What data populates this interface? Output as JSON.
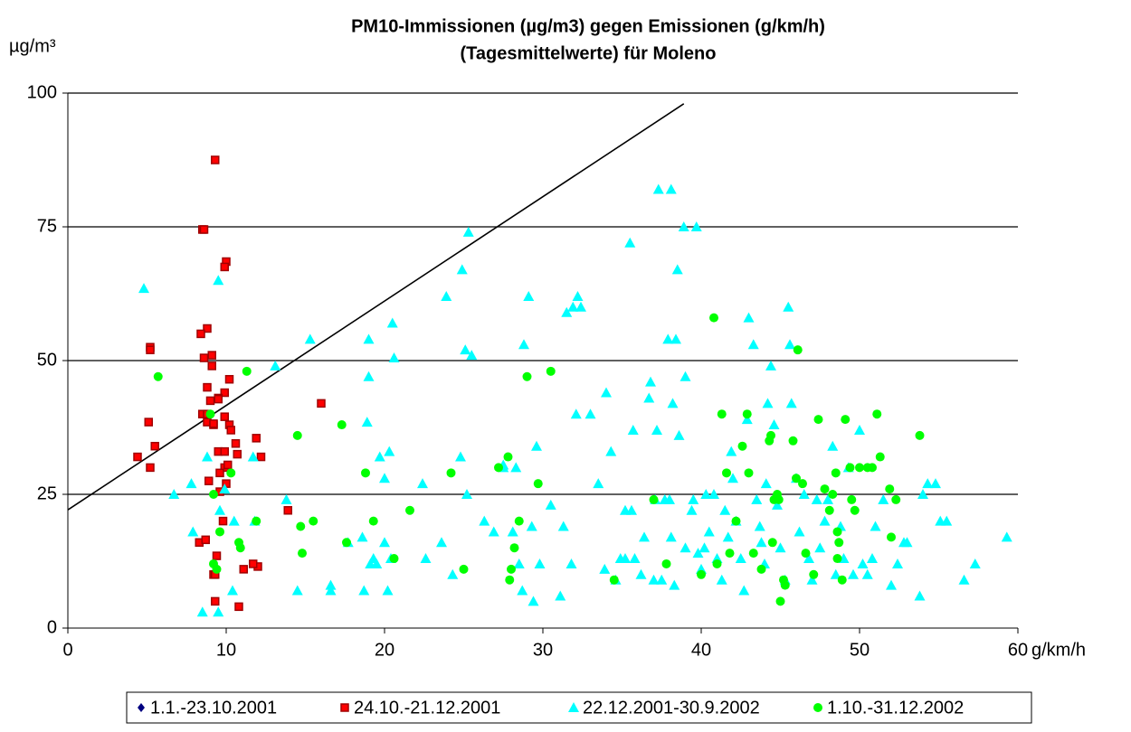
{
  "chart_data": {
    "type": "scatter",
    "title": "PM10-Immissionen (µg/m3) gegen Emissionen (g/km/h)",
    "subtitle": "(Tagesmittelwerte) für Moleno",
    "y_label": "µg/m³",
    "x_label": "g/km/h",
    "xlim": [
      0,
      60
    ],
    "xticks": [
      0,
      10,
      20,
      30,
      40,
      50,
      60
    ],
    "ylim": [
      0,
      100
    ],
    "yticks": [
      0,
      25,
      50,
      75,
      100
    ],
    "grid": true,
    "line": {
      "x": [
        0,
        38.9
      ],
      "values": [
        22.1,
        98
      ],
      "color": "#000000"
    },
    "series": [
      {
        "name": "1.1.-23.10.2001",
        "color": "#000080",
        "marker": "diamond",
        "x": [],
        "values": []
      },
      {
        "name": "24.10.-21.12.2001",
        "color": "#ff0000",
        "marker": "square",
        "x": [
          9.3,
          8.5,
          8.6,
          10,
          9.9,
          8.8,
          8.4,
          5.2,
          5.2,
          9.1,
          8.6,
          9.1,
          10.2,
          9.9,
          9.5,
          9,
          16,
          8.5,
          8.8,
          9.9,
          10.2,
          8.8,
          9.2,
          10.3,
          5.1,
          11.9,
          5.5,
          10.6,
          9.5,
          9.9,
          10.7,
          4.4,
          12.2,
          9.9,
          10.1,
          5.2,
          9.6,
          8.9,
          10,
          9.6,
          13.9,
          9.8,
          8.3,
          8.7,
          9.4,
          12,
          11.1,
          9.2,
          9.3,
          10.8,
          9.3,
          11.7,
          9.5,
          9.2,
          8.8
        ],
        "values": [
          87.5,
          74.5,
          74.5,
          68.5,
          67.5,
          56,
          55,
          52.5,
          52,
          51,
          50.5,
          49,
          46.5,
          44,
          43,
          42.5,
          42,
          40,
          40,
          39.5,
          38,
          38.5,
          38,
          37,
          38.5,
          35.5,
          34,
          34.5,
          33,
          33,
          32.5,
          32,
          32,
          30,
          30.5,
          30,
          29,
          27.5,
          27,
          25.5,
          22,
          20,
          16,
          16.5,
          13.5,
          11.5,
          11,
          10,
          10,
          4,
          5,
          12,
          42.8,
          38.2,
          45
        ]
      },
      {
        "name": "22.12.2001-30.9.2002",
        "color": "#00ffff",
        "marker": "triangle",
        "x": [
          4.8,
          9.5,
          6.7,
          7.8,
          8.8,
          8.5,
          9.5,
          7.9,
          10.5,
          9.9,
          9.6,
          10.4,
          11.7,
          11.8,
          13.1,
          13.8,
          15.3,
          14.5,
          16.6,
          16.6,
          17.7,
          18.6,
          18.7,
          18.9,
          19,
          19,
          19.1,
          19.3,
          19.5,
          19.7,
          20,
          20,
          20.2,
          20.3,
          20.5,
          20.6,
          20.4,
          22.4,
          22.6,
          23.6,
          23.9,
          24.3,
          24.9,
          24.8,
          25.1,
          25.3,
          25.5,
          25.2,
          26.3,
          26.9,
          27.5,
          27.5,
          28.3,
          28.1,
          28.5,
          28.7,
          28.8,
          29.1,
          29.4,
          29.3,
          29.6,
          29.8,
          30.5,
          31.1,
          31.3,
          31.5,
          31.8,
          31.9,
          32.1,
          32.2,
          32.4,
          33,
          33.5,
          33.9,
          34,
          34.3,
          34.6,
          34.9,
          35.2,
          35.2,
          35.5,
          35.6,
          35.7,
          35.8,
          36.2,
          36.4,
          36.7,
          36.8,
          37,
          37.1,
          37.2,
          37.3,
          37.5,
          37.7,
          37.9,
          38,
          38.1,
          38.1,
          38.2,
          38.3,
          38.4,
          38.5,
          38.6,
          38.9,
          39,
          39,
          39.5,
          39.7,
          39.4,
          39.8,
          40,
          40.2,
          40.5,
          40.8,
          41,
          41.3,
          41.5,
          41.7,
          42,
          42.2,
          42.5,
          42.7,
          42.9,
          43,
          43.3,
          43.5,
          43.7,
          44,
          44.2,
          44.4,
          44.6,
          44.8,
          45,
          45.3,
          45.5,
          45.6,
          45.7,
          46,
          46.2,
          46.5,
          46.8,
          47,
          47.3,
          47.5,
          47.8,
          48,
          48.3,
          48.5,
          48.8,
          49,
          49.3,
          49.6,
          50,
          50.2,
          50.5,
          50.8,
          51,
          51.5,
          52,
          52.4,
          52.8,
          53,
          53.8,
          54,
          54.3,
          54.8,
          55.1,
          55.5,
          56.6,
          57.3,
          59.3,
          40.3,
          41.9,
          43.8,
          44.1
        ],
        "values": [
          63.5,
          65,
          25,
          27,
          32,
          3,
          3,
          18,
          20,
          26,
          22,
          7,
          32,
          20,
          49,
          24,
          54,
          7,
          8,
          7,
          16,
          17,
          7,
          38.5,
          47,
          54,
          12,
          13,
          12,
          32,
          16,
          28,
          7,
          33,
          57,
          50.5,
          13,
          27,
          13,
          16,
          62,
          10,
          67,
          32,
          52,
          74,
          51,
          25,
          20,
          18,
          30.5,
          30,
          30,
          18,
          12,
          7,
          53,
          62,
          5,
          19,
          34,
          12,
          23,
          6,
          19,
          59,
          12,
          60,
          40,
          62,
          60,
          40,
          27,
          11,
          44,
          33,
          9,
          13,
          22,
          13,
          72,
          22,
          37,
          13,
          10,
          17,
          43,
          46,
          9,
          24,
          37,
          82,
          9,
          24,
          54,
          24,
          82,
          17,
          42,
          8,
          54,
          67,
          36,
          75,
          47,
          15,
          24,
          75,
          22,
          14,
          11,
          15,
          18,
          25,
          13,
          9,
          22,
          17,
          28,
          20,
          13,
          7,
          39,
          58,
          53,
          24,
          19,
          12,
          42,
          49,
          38,
          23,
          15,
          9,
          60,
          53,
          42,
          28,
          18,
          25,
          13,
          9,
          24,
          15,
          20,
          24,
          34,
          10,
          19,
          13,
          30,
          10,
          37,
          12,
          10,
          13,
          19,
          24,
          8,
          12,
          16,
          16,
          6,
          25,
          27,
          27,
          20,
          20,
          9,
          12,
          17,
          25,
          33,
          16,
          27
        ]
      },
      {
        "name": "1.10.-31.12.2002",
        "color": "#00ff00",
        "marker": "circle",
        "x": [
          5.7,
          9,
          9.2,
          9.4,
          9.2,
          9.6,
          10.3,
          10.8,
          10.9,
          11.3,
          11.9,
          14.5,
          14.7,
          14.8,
          15.5,
          17.3,
          17.6,
          18.8,
          19.3,
          20.6,
          21.6,
          24.2,
          25,
          27.2,
          27.8,
          27.9,
          28,
          28.2,
          28.5,
          29,
          29.7,
          30.5,
          34.5,
          37,
          37.8,
          40,
          40.8,
          41.3,
          41.6,
          41.8,
          42.2,
          42.6,
          42.9,
          43,
          43.3,
          43.8,
          44.3,
          44.4,
          44.5,
          44.6,
          44.8,
          45,
          45.2,
          45.3,
          45.8,
          46,
          46.1,
          46.4,
          46.6,
          47.1,
          47.4,
          47.8,
          48.1,
          48.3,
          48.5,
          48.6,
          48.7,
          48.9,
          49.1,
          49.4,
          49.5,
          49.7,
          50,
          50.5,
          50.8,
          51.1,
          51.3,
          51.9,
          52,
          52.3,
          53.8,
          48.6,
          44.9,
          41
        ],
        "values": [
          47,
          40,
          12,
          11,
          25,
          18,
          29,
          16,
          15,
          48,
          20,
          36,
          19,
          14,
          20,
          38,
          16,
          29,
          20,
          13,
          22,
          29,
          11,
          30,
          32,
          9,
          11,
          15,
          20,
          47,
          27,
          48,
          9,
          24,
          12,
          10,
          58,
          40,
          29,
          14,
          20,
          34,
          40,
          29,
          14,
          11,
          35,
          36,
          16,
          24,
          25,
          5,
          9,
          8,
          35,
          28,
          52,
          27,
          14,
          10,
          39,
          26,
          22,
          25,
          29,
          18,
          16,
          9,
          39,
          30,
          24,
          22,
          30,
          30,
          30,
          40,
          32,
          26,
          17,
          24,
          36,
          13,
          24,
          12
        ]
      }
    ]
  }
}
